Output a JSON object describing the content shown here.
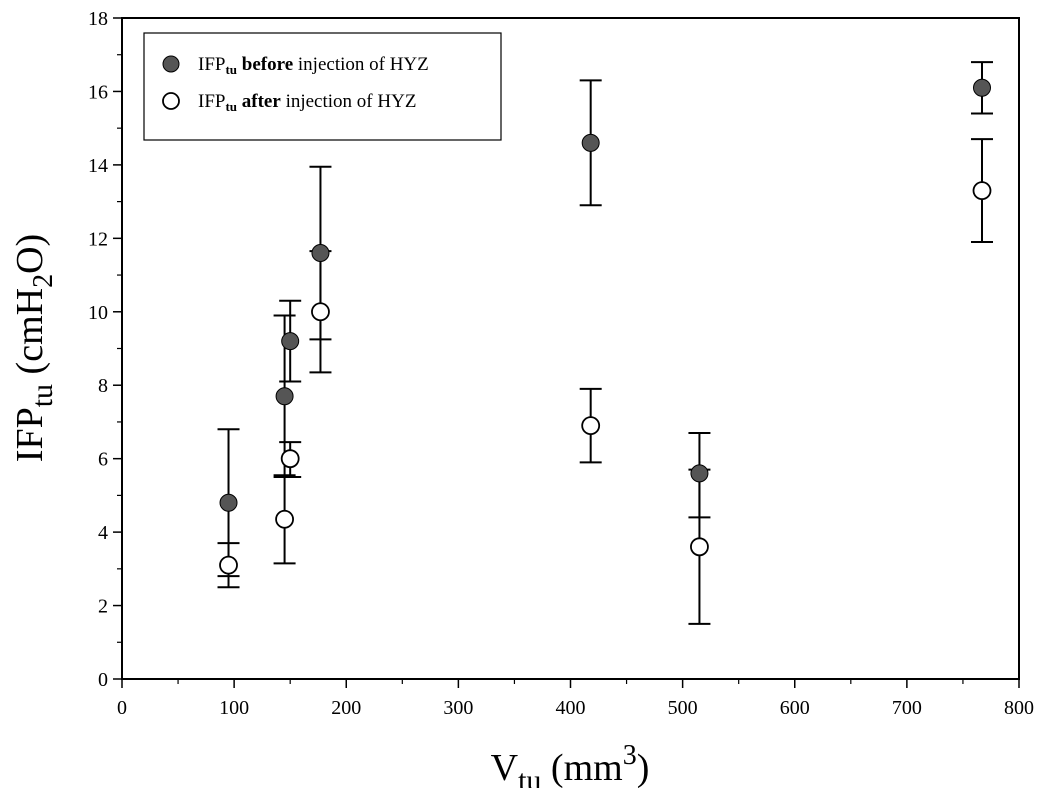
{
  "chart_data": {
    "type": "scatter",
    "xlabel": {
      "main": "V",
      "sub": "tu",
      "rest": " (mm",
      "sup": "3",
      "close": ")"
    },
    "ylabel": {
      "main": "IFP",
      "sub": "tu",
      "rest": " (cmH",
      "sub2": "2",
      "close": "O)"
    },
    "xlim": [
      0,
      800
    ],
    "ylim": [
      0,
      18
    ],
    "xticks": [
      0,
      100,
      200,
      300,
      400,
      500,
      600,
      700,
      800
    ],
    "yticks": [
      0,
      2,
      4,
      6,
      8,
      10,
      12,
      14,
      16,
      18
    ],
    "grid": false,
    "legend_position": "top-left",
    "series": [
      {
        "name": "IFPtu before injection of HYZ",
        "legend": {
          "main": "IFP",
          "sub": "tu",
          "bold": " before",
          "rest": " injection of HYZ"
        },
        "marker": "filled-circle",
        "color": "#555555",
        "points": [
          {
            "x": 95,
            "y": 4.8,
            "err_low": 2.8,
            "err_high": 6.8
          },
          {
            "x": 145,
            "y": 7.7,
            "err_low": 5.5,
            "err_high": 9.9
          },
          {
            "x": 150,
            "y": 9.2,
            "err_low": 8.1,
            "err_high": 10.3
          },
          {
            "x": 177,
            "y": 11.6,
            "err_low": 9.25,
            "err_high": 13.95
          },
          {
            "x": 418,
            "y": 14.6,
            "err_low": 12.9,
            "err_high": 16.3
          },
          {
            "x": 515,
            "y": 5.6,
            "err_low": 4.4,
            "err_high": 6.7
          },
          {
            "x": 767,
            "y": 16.1,
            "err_low": 15.4,
            "err_high": 16.8
          }
        ]
      },
      {
        "name": "IFPtu after injection of HYZ",
        "legend": {
          "main": "IFP",
          "sub": "tu",
          "bold": " after",
          "rest": " injection of HYZ"
        },
        "marker": "open-circle",
        "color": "#000000",
        "points": [
          {
            "x": 95,
            "y": 3.1,
            "err_low": 2.5,
            "err_high": 3.7
          },
          {
            "x": 145,
            "y": 4.35,
            "err_low": 3.15,
            "err_high": 5.55
          },
          {
            "x": 150,
            "y": 6.0,
            "err_low": 5.5,
            "err_high": 6.45
          },
          {
            "x": 177,
            "y": 10.0,
            "err_low": 8.35,
            "err_high": 11.65
          },
          {
            "x": 418,
            "y": 6.9,
            "err_low": 5.9,
            "err_high": 7.9
          },
          {
            "x": 515,
            "y": 3.6,
            "err_low": 1.5,
            "err_high": 5.7
          },
          {
            "x": 767,
            "y": 13.3,
            "err_low": 11.9,
            "err_high": 14.7
          }
        ]
      }
    ]
  }
}
